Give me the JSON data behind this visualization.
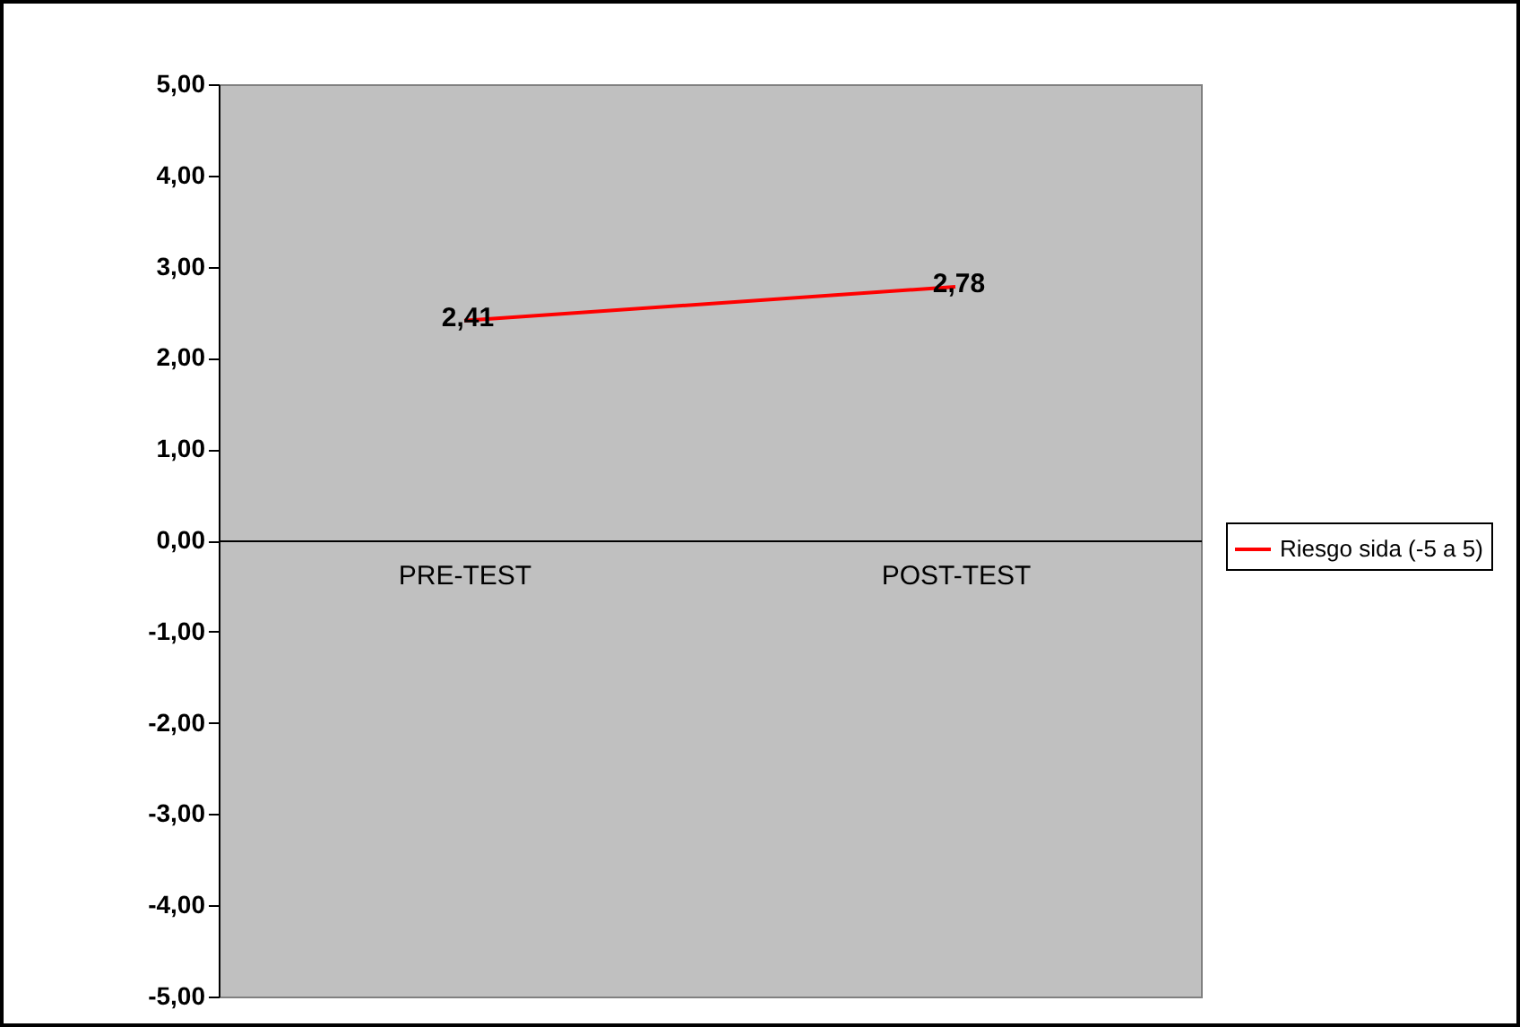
{
  "chart_data": {
    "type": "line",
    "categories": [
      "PRE-TEST",
      "POST-TEST"
    ],
    "series": [
      {
        "name": "Riesgo sida (-5 a 5)",
        "color": "#ff0000",
        "values": [
          2.41,
          2.78
        ],
        "value_labels": [
          "2,41",
          "2,78"
        ]
      }
    ],
    "ylim": [
      -5,
      5
    ],
    "yticks": [
      {
        "value": -5,
        "label": "-5,00"
      },
      {
        "value": -4,
        "label": "-4,00"
      },
      {
        "value": -3,
        "label": "-3,00"
      },
      {
        "value": -2,
        "label": "-2,00"
      },
      {
        "value": -1,
        "label": "-1,00"
      },
      {
        "value": 0,
        "label": "0,00"
      },
      {
        "value": 1,
        "label": "1,00"
      },
      {
        "value": 2,
        "label": "2,00"
      },
      {
        "value": 3,
        "label": "3,00"
      },
      {
        "value": 4,
        "label": "4,00"
      },
      {
        "value": 5,
        "label": "5,00"
      }
    ],
    "grid": false,
    "legend": "right",
    "marker": "none",
    "line_style": "solid"
  }
}
